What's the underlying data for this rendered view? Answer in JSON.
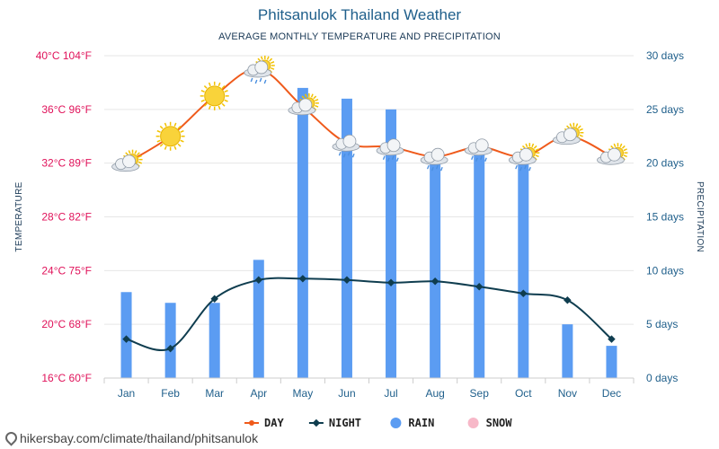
{
  "chart_data": {
    "type": "bar",
    "title": "Phitsanulok Thailand Weather",
    "subtitle": "AVERAGE MONTHLY TEMPERATURE AND PRECIPITATION",
    "categories": [
      "Jan",
      "Feb",
      "Mar",
      "Apr",
      "May",
      "Jun",
      "Jul",
      "Aug",
      "Sep",
      "Oct",
      "Nov",
      "Dec"
    ],
    "ylabel_left": "TEMPERATURE",
    "ylabel_right": "PRECIPITATION",
    "ylim_left_c": [
      16,
      40
    ],
    "ylim_right_days": [
      0,
      30
    ],
    "left_ticks": [
      "16°C 60°F",
      "20°C 68°F",
      "24°C 75°F",
      "28°C 82°F",
      "32°C 89°F",
      "36°C 96°F",
      "40°C 104°F"
    ],
    "right_ticks": [
      "0 days",
      "5 days",
      "10 days",
      "15 days",
      "20 days",
      "25 days",
      "30 days"
    ],
    "grid": true,
    "legend_position": "bottom",
    "series": [
      {
        "name": "DAY",
        "type": "line",
        "color": "#ef5a1b",
        "values": [
          32,
          34,
          37,
          39,
          36.2,
          33.5,
          33.2,
          32.5,
          33.2,
          32.5,
          34,
          32.5
        ]
      },
      {
        "name": "NIGHT",
        "type": "line",
        "color": "#0f3d4f",
        "values": [
          18.9,
          18.2,
          21.9,
          23.3,
          23.4,
          23.3,
          23.1,
          23.2,
          22.8,
          22.3,
          21.8,
          18.9
        ]
      },
      {
        "name": "RAIN",
        "type": "bar",
        "color": "#5b9cf2",
        "values": [
          8,
          7,
          7,
          11,
          27,
          26,
          25,
          20,
          21,
          20,
          5,
          3
        ]
      },
      {
        "name": "SNOW",
        "type": "bar",
        "color": "#f7b8c8",
        "values": [
          0,
          0,
          0,
          0,
          0,
          0,
          0,
          0,
          0,
          0,
          0,
          0
        ]
      }
    ],
    "weather_icons": [
      "sun-cloud",
      "sun",
      "sun",
      "sun-cloud-rain",
      "sun-cloud",
      "cloud-rain",
      "cloud-rain",
      "cloud-rain",
      "cloud-rain",
      "sun-cloud-rain",
      "sun-cloud",
      "sun-cloud"
    ]
  },
  "legend": [
    {
      "label": "DAY",
      "color": "#ef5a1b",
      "marker": "line-dot"
    },
    {
      "label": "NIGHT",
      "color": "#0f3d4f",
      "marker": "line-diamond"
    },
    {
      "label": "RAIN",
      "color": "#5b9cf2",
      "marker": "circle"
    },
    {
      "label": "SNOW",
      "color": "#f7b8c8",
      "marker": "circle"
    }
  ],
  "source": "hikersbay.com/climate/thailand/phitsanulok"
}
